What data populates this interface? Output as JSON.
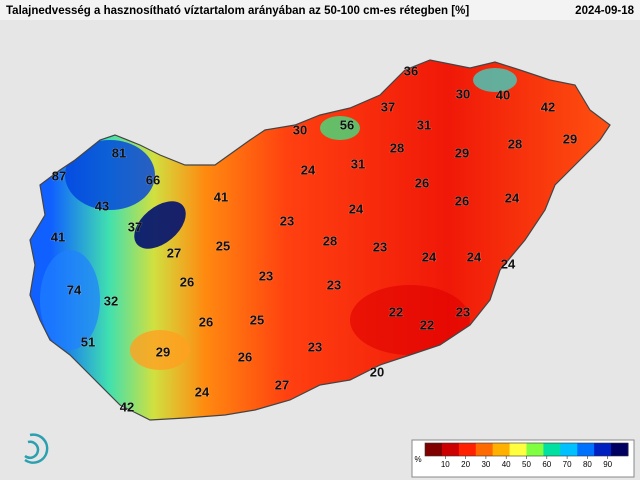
{
  "header": {
    "title": "Talajnedvesség a hasznosítható víztartalom arányában az 50-100 cm-es rétegben [%]",
    "date": "2024-09-18"
  },
  "stations": [
    36,
    30,
    40,
    42,
    37,
    56,
    30,
    31,
    29,
    28,
    29,
    28,
    81,
    31,
    24,
    87,
    66,
    26,
    41,
    43,
    26,
    24,
    24,
    23,
    37,
    41,
    28,
    25,
    27,
    23,
    24,
    24,
    24,
    23,
    26,
    23,
    74,
    32,
    22,
    22,
    23,
    26,
    25,
    51,
    29,
    23,
    26,
    20,
    27,
    24,
    42
  ],
  "colorbar": {
    "unit": "%",
    "range": [
      0,
      100
    ],
    "ticks": [
      10,
      20,
      30,
      40,
      50,
      60,
      70,
      80,
      90
    ],
    "colors": [
      "#800000",
      "#cc0000",
      "#ff2000",
      "#ff6a00",
      "#ffb000",
      "#ffff40",
      "#80ff40",
      "#00e0a0",
      "#00c0ff",
      "#0070ff",
      "#0020c0",
      "#000060"
    ]
  }
}
